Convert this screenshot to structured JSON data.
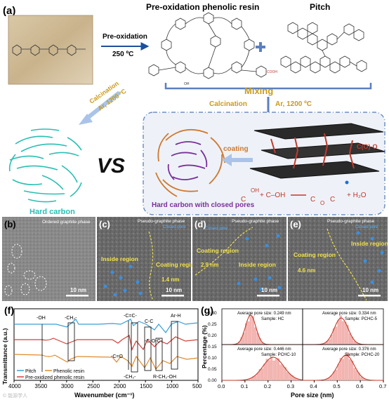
{
  "panel_a": {
    "label": "(a)",
    "preox_title": "Pre-oxidation phenolic resin",
    "pitch_title": "Pitch",
    "preox_step": "Pre-oxidation",
    "preox_temp": "250 ºC",
    "mixing": "Mixing",
    "calc_mix": "Calcination",
    "calc_mix_cond": "Ar, 1200 ºC",
    "calc_left": "Calcination",
    "calc_left_cond": "Ar, 1200 ºC",
    "vs": "VS",
    "hard_carbon": "Hard carbon",
    "coating": "coating",
    "closed_pores": "Hard carbon with closed pores",
    "cooh_label": "C(O)-O",
    "reaction": {
      "lhs": "+ C–OH",
      "rhs": "+ H₂O",
      "c1": "C",
      "oh": "OH",
      "c2": "C",
      "o": "O",
      "c3": "C"
    },
    "chem_cooh": "COOH",
    "chem_oh": "OH",
    "colors": {
      "teal": "#2bbfb3",
      "orange": "#d0782f",
      "purple": "#7b2f9c",
      "red": "#c0392b",
      "blue": "#5b7fc0",
      "gold": "#c99a1a"
    }
  },
  "tem": [
    {
      "label": "(b)",
      "title": "Ordered graphite phase",
      "scale": "10 nm"
    },
    {
      "label": "(c)",
      "title": "Pseudo-graphite phase",
      "sub": "Closed pore",
      "inside": "Inside region",
      "coating": "Coating region",
      "thick": "1.4 nm",
      "scale": "10 nm"
    },
    {
      "label": "(d)",
      "title": "Pseudo-graphite phase",
      "sub": "Closed pore",
      "inside": "Inside region",
      "coating": "Coating region",
      "thick": "2.9 nm",
      "scale": "10 nm"
    },
    {
      "label": "(e)",
      "title": "Pseudo-graphite phase",
      "sub": "Closed pore",
      "inside": "Inside region",
      "coating": "Coating region",
      "thick": "4.6 nm",
      "scale": "10 nm"
    }
  ],
  "panel_f": {
    "label": "(f)",
    "ylabel": "Transmittance (a.u.)",
    "xlabel": "Wavenumber (cm⁻¹)",
    "xticks": [
      "4000",
      "3500",
      "3000",
      "2500",
      "2000",
      "1500",
      "1000",
      "500"
    ],
    "annotations": [
      "-OH",
      "-CH₂-",
      "-C=C-",
      "C-C",
      "Ar-H",
      "-C=O",
      "-C-O-C-",
      "-CH₂-",
      "R-CH₂-OH"
    ],
    "legend": [
      "Pitch",
      "Phenolic resin",
      "Pre-oxidized phenolic resin"
    ]
  },
  "panel_g": {
    "label": "(g)",
    "ylabel": "Percentage (%)",
    "xlabel": "Pore size (nm)",
    "xticks": [
      "0.0",
      "0.1",
      "0.2",
      "0.3",
      "0.4",
      "0.5",
      "0.6",
      "0.7"
    ],
    "yticks": [
      "0.30",
      "0.25",
      "0.20",
      "0.15",
      "0.10",
      "0.05",
      "0.00"
    ]
  },
  "chart_data": [
    {
      "type": "line",
      "title": "",
      "xlabel": "Wavenumber (cm⁻¹)",
      "ylabel": "Transmittance (a.u.)",
      "xlim": [
        4000,
        500
      ],
      "series": [
        {
          "name": "Pitch",
          "color": "#3a9fd6"
        },
        {
          "name": "Phenolic resin",
          "color": "#e08a2e"
        },
        {
          "name": "Pre-oxidized phenolic resin",
          "color": "#d0403a"
        }
      ]
    },
    {
      "type": "bar",
      "xlabel": "Pore size (nm)",
      "ylabel": "Percentage (%)",
      "xlim": [
        0.0,
        0.7
      ],
      "ylim": [
        0.0,
        0.3
      ],
      "panels": [
        {
          "avg": "Average pore size: 0.249 nm",
          "sample": "Sample: HC",
          "mean": 0.249,
          "sigma": 0.045
        },
        {
          "avg": "Average pore size: 0.334 nm",
          "sample": "Sample: PCHC-5",
          "mean": 0.334,
          "sigma": 0.06
        },
        {
          "avg": "Average pore size: 0.446 nm",
          "sample": "Sample: PCHC-10",
          "mean": 0.446,
          "sigma": 0.09
        },
        {
          "avg": "Average pore size: 0.376 nm",
          "sample": "Sample: PCHC-20",
          "mean": 0.376,
          "sigma": 0.07
        }
      ]
    }
  ]
}
